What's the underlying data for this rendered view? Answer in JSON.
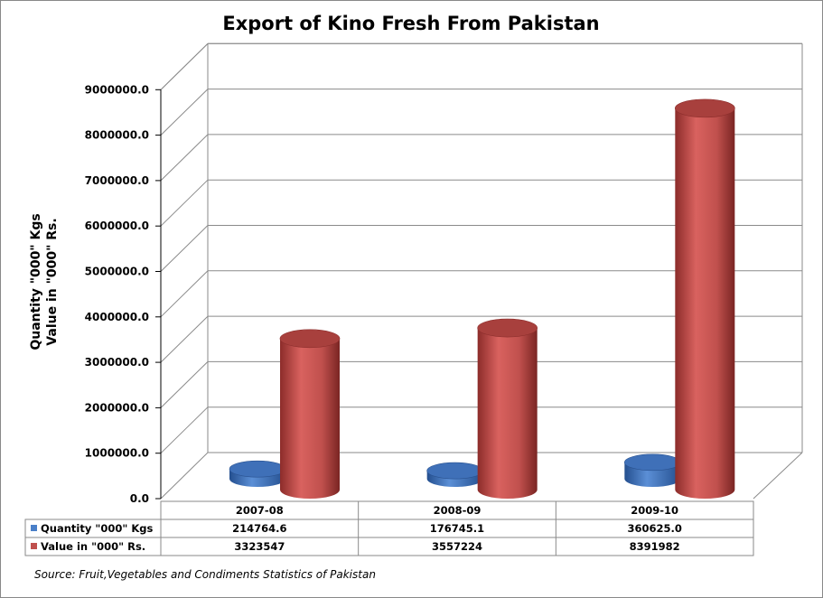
{
  "chart_data": {
    "type": "bar",
    "title": "Export of Kino Fresh From Pakistan",
    "ylabel_lines": [
      "Quantity \"000\" Kgs",
      "Value in \"000\" Rs."
    ],
    "categories": [
      "2007-08",
      "2008-09",
      "2009-10"
    ],
    "series": [
      {
        "name": "Quantity \"000\" Kgs",
        "values": [
          214764.6,
          176745.1,
          360625.0
        ],
        "labels": [
          "214764.6",
          "176745.1",
          "360625.0"
        ],
        "color": "#4a7fc8"
      },
      {
        "name": "Value in \"000\" Rs.",
        "values": [
          3323547,
          3557224,
          8391982
        ],
        "labels": [
          "3323547",
          "3557224",
          "8391982"
        ],
        "color": "#c0504d"
      }
    ],
    "yticks": [
      "0.0",
      "1000000.0",
      "2000000.0",
      "3000000.0",
      "4000000.0",
      "5000000.0",
      "6000000.0",
      "7000000.0",
      "8000000.0",
      "9000000.0"
    ],
    "ylim": [
      0,
      9000000
    ],
    "grid": true,
    "legend": "data-table",
    "source": "Source: Fruit,Vegetables and Condiments Statistics of Pakistan"
  }
}
